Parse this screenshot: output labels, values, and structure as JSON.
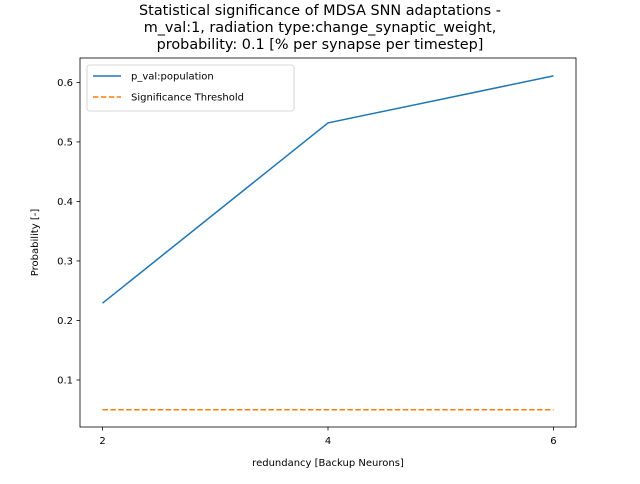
{
  "chart_data": {
    "type": "line",
    "title": [
      "Statistical significance of MDSA SNN adaptations -",
      "m_val:1, radiation type:change_synaptic_weight,",
      "probability: 0.1 [% per synapse per timestep]"
    ],
    "xlabel": "redundancy [Backup Neurons]",
    "ylabel": "Probability [-]",
    "x": [
      2,
      4,
      6
    ],
    "xticks": [
      "2",
      "4",
      "6"
    ],
    "yticks": [
      "0.1",
      "0.2",
      "0.3",
      "0.4",
      "0.5",
      "0.6"
    ],
    "xlim": [
      1.8,
      6.2
    ],
    "ylim": [
      0.021,
      0.641
    ],
    "grid": false,
    "legend_position": "top-left",
    "series": [
      {
        "name": "p_val:population",
        "values": [
          0.229,
          0.532,
          0.611
        ],
        "color": "#1f77b4",
        "style": "solid"
      },
      {
        "name": "Significance Threshold",
        "values": [
          0.05,
          0.05,
          0.05
        ],
        "color": "#ff7f0e",
        "style": "dashed"
      }
    ]
  }
}
